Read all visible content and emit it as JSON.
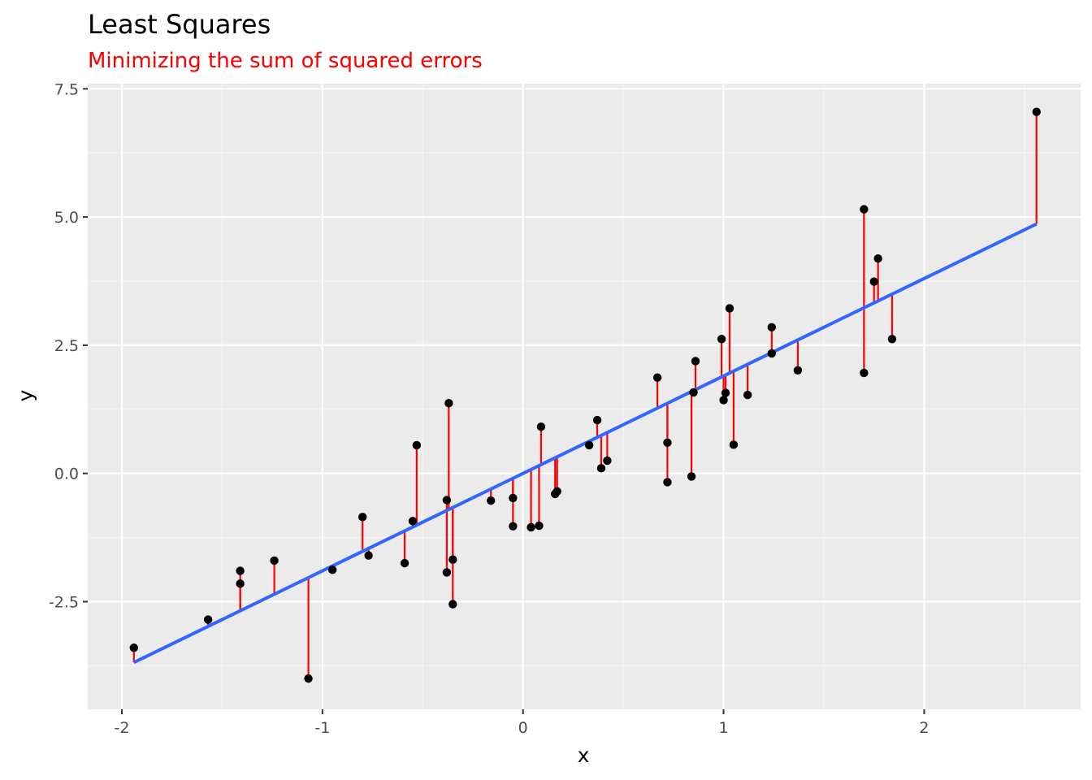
{
  "colors": {
    "panel_background": "#ebebeb",
    "grid_major": "#ffffff",
    "grid_minor": "#f5f5f5",
    "points": "#000000",
    "fit_line": "#3366ff",
    "residuals": "#ff0000",
    "subtitle": "#ff0000",
    "tick_text": "#4d4d4d"
  },
  "chart_data": {
    "type": "scatter",
    "title": "Least Squares",
    "subtitle": "Minimizing the sum of squared errors",
    "xlabel": "x",
    "ylabel": "y",
    "xlim": [
      -2.17,
      2.78
    ],
    "ylim": [
      -4.6,
      7.6
    ],
    "x_ticks": [
      -2,
      -1,
      0,
      1,
      2
    ],
    "x_tick_labels": [
      "-2",
      "-1",
      "0",
      "1",
      "2"
    ],
    "y_ticks": [
      -2.5,
      0,
      2.5,
      5,
      7.5
    ],
    "y_tick_labels": [
      "-2.5",
      "0.0",
      "2.5",
      "5.0",
      "7.5"
    ],
    "grid": true,
    "legend": "none",
    "fit_line": {
      "intercept": 0.0,
      "slope": 1.9,
      "x_range": [
        -1.94,
        2.56
      ]
    },
    "residuals": "vertical segments from each point to the fitted line",
    "series": [
      {
        "x": [
          -1.94,
          -1.57,
          -1.41,
          -1.41,
          -1.24,
          -1.07,
          -0.95,
          -0.8,
          -0.77,
          -0.59,
          -0.55,
          -0.53,
          -0.38,
          -0.38,
          -0.37,
          -0.35,
          -0.35,
          -0.16,
          -0.05,
          -0.05,
          0.04,
          0.08,
          0.09,
          0.16,
          0.17,
          0.33,
          0.37,
          0.39,
          0.42,
          0.67,
          0.72,
          0.72,
          0.84,
          0.85,
          0.86,
          0.99,
          1.0,
          1.01,
          1.03,
          1.05,
          1.12,
          1.24,
          1.24,
          1.37,
          1.7,
          1.7,
          1.75,
          1.77,
          1.84,
          2.56
        ],
        "y": [
          -3.4,
          -2.85,
          -1.9,
          -2.15,
          -1.7,
          -4.0,
          -1.88,
          -0.85,
          -1.6,
          -1.75,
          -0.93,
          0.55,
          -1.93,
          -0.52,
          1.37,
          -1.68,
          -2.55,
          -0.53,
          -1.03,
          -0.48,
          -1.05,
          -1.02,
          0.91,
          -0.4,
          -0.35,
          0.55,
          1.04,
          0.1,
          0.25,
          1.87,
          0.6,
          -0.17,
          -0.06,
          1.58,
          2.19,
          2.62,
          1.43,
          1.57,
          3.22,
          0.56,
          1.53,
          2.34,
          2.85,
          2.01,
          5.15,
          1.96,
          3.74,
          4.19,
          2.62,
          7.05
        ]
      }
    ]
  }
}
